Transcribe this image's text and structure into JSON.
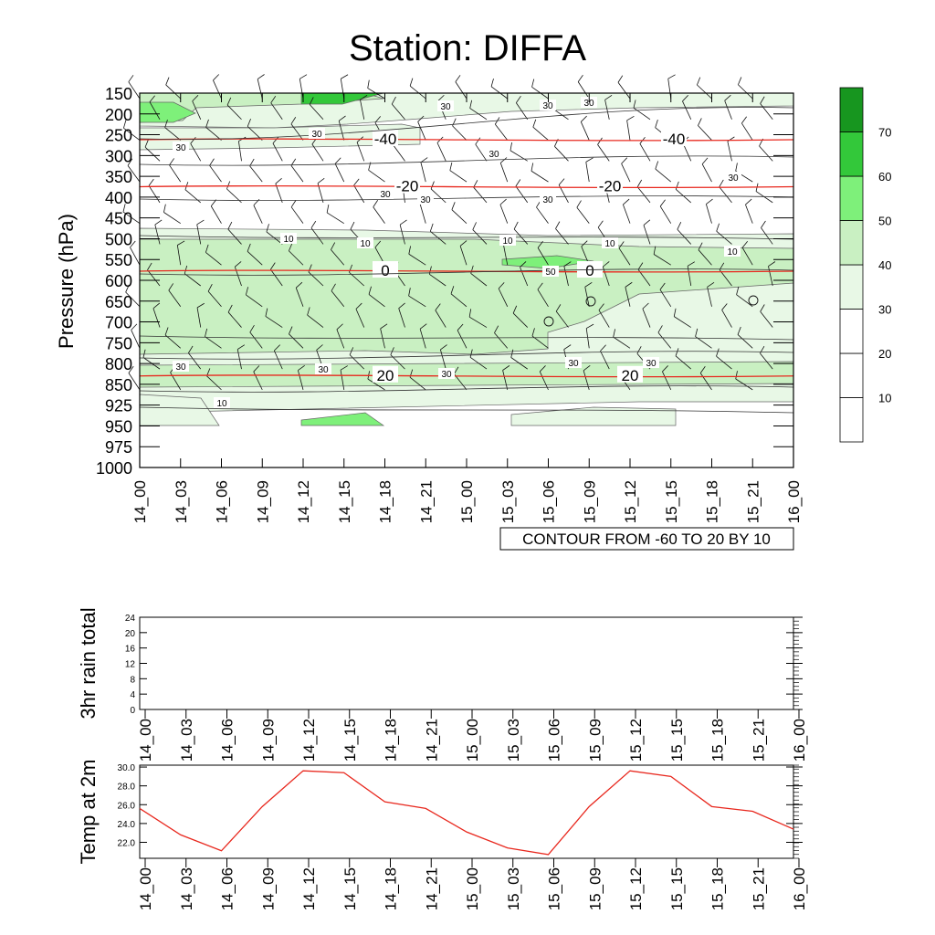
{
  "title": "Station: DIFFA",
  "chart_data": [
    {
      "id": "cross_section",
      "type": "contour",
      "ylabel": "Pressure (hPa)",
      "pressure_levels": [
        150,
        200,
        250,
        300,
        350,
        400,
        450,
        500,
        550,
        600,
        650,
        700,
        750,
        800,
        850,
        925,
        950,
        975,
        1000
      ],
      "time_labels": [
        "14_00",
        "14_03",
        "14_06",
        "14_09",
        "14_12",
        "14_15",
        "14_18",
        "14_21",
        "15_00",
        "15_03",
        "15_06",
        "15_09",
        "15_12",
        "15_15",
        "15_18",
        "15_21",
        "16_00"
      ],
      "info_label": "CONTOUR FROM -60 TO 20 BY 10",
      "colorbar": {
        "levels": [
          10,
          20,
          30,
          40,
          50,
          60,
          70
        ],
        "colors": [
          "#ffffff",
          "#ffffff",
          "#e8f8e6",
          "#c9f0c2",
          "#7ef07a",
          "#33c83a",
          "#17961f"
        ]
      },
      "temperature_contours": [
        {
          "label": "-40",
          "pressure": 262
        },
        {
          "label": "-20",
          "pressure": 375
        },
        {
          "label": "0",
          "pressure": 578
        },
        {
          "label": "20",
          "pressure": 830
        }
      ],
      "rh_contour_labels": [
        "30",
        "30",
        "30",
        "30",
        "30",
        "10",
        "10",
        "10",
        "10",
        "10",
        "30",
        "30",
        "30",
        "30",
        "30",
        "50",
        "30",
        "30",
        "30",
        "30",
        "30",
        "10"
      ],
      "temp_contour_colors": {
        "line": "#e8281e",
        "label": "#e8281e"
      }
    },
    {
      "id": "rain",
      "type": "line",
      "ylabel": "3hr rain total",
      "x": [
        "14_00",
        "14_03",
        "14_06",
        "14_09",
        "14_12",
        "14_15",
        "14_18",
        "14_21",
        "15_00",
        "15_03",
        "15_06",
        "15_09",
        "15_12",
        "15_15",
        "15_18",
        "15_21",
        "16_00"
      ],
      "values": [
        0,
        0,
        0,
        0,
        0,
        0,
        0,
        0,
        0,
        0,
        0,
        0,
        0,
        0,
        0,
        0,
        0
      ],
      "ylim": [
        0,
        24
      ],
      "yticks": [
        "0",
        "4",
        "8",
        "12",
        "16",
        "20",
        "24"
      ]
    },
    {
      "id": "temp2m",
      "type": "line",
      "ylabel": "Temp at 2m",
      "x": [
        "14_00",
        "14_03",
        "14_06",
        "14_09",
        "14_12",
        "14_15",
        "14_18",
        "14_21",
        "15_00",
        "15_03",
        "15_06",
        "15_09",
        "15_12",
        "15_15",
        "15_18",
        "15_21",
        "16_00"
      ],
      "values": [
        25.6,
        22.8,
        21.1,
        25.8,
        29.6,
        29.4,
        26.3,
        25.6,
        23.1,
        21.4,
        20.7,
        25.8,
        29.6,
        29.0,
        25.8,
        25.3,
        23.4
      ],
      "ylim": [
        20.3,
        30.2
      ],
      "yticks": [
        "22.0",
        "24.0",
        "26.0",
        "28.0",
        "30.0"
      ],
      "line_color": "#e8281e"
    }
  ]
}
